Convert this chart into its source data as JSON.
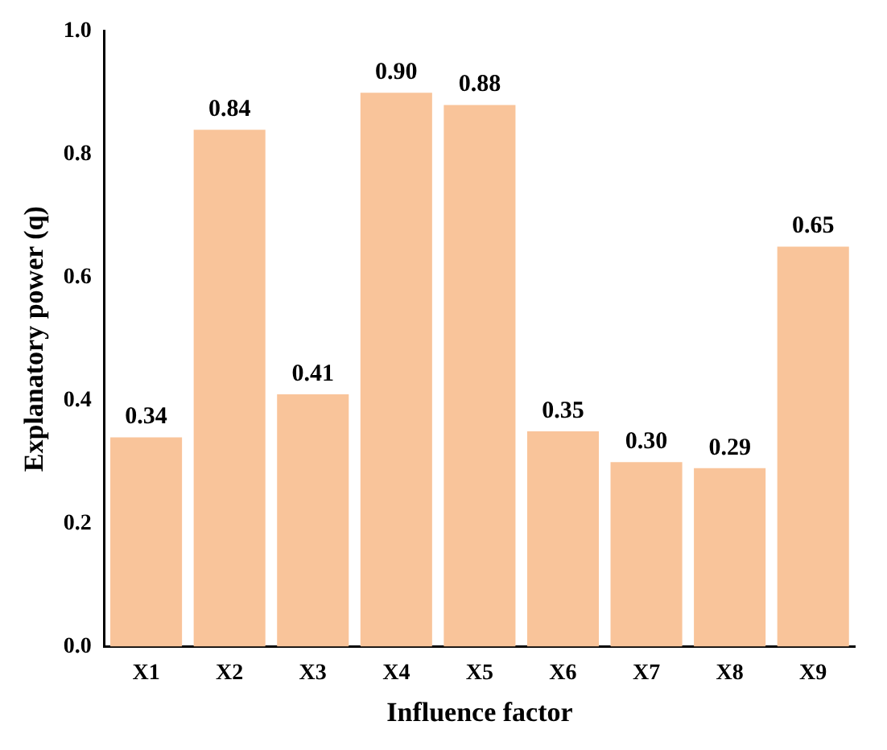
{
  "chart_data": {
    "type": "bar",
    "xlabel": "Influence factor",
    "ylabel": "Explanatory power (q)",
    "categories": [
      "X1",
      "X2",
      "X3",
      "X4",
      "X5",
      "X6",
      "X7",
      "X8",
      "X9"
    ],
    "values": [
      0.34,
      0.84,
      0.41,
      0.9,
      0.88,
      0.35,
      0.3,
      0.29,
      0.65
    ],
    "value_labels": [
      "0.34",
      "0.84",
      "0.41",
      "0.90",
      "0.88",
      "0.35",
      "0.30",
      "0.29",
      "0.65"
    ],
    "color": "#f9c49a",
    "ylim": [
      0,
      1
    ],
    "yticks": [
      {
        "value": 0,
        "label": "0.0"
      },
      0.2,
      0.4,
      0.6,
      0.8,
      {
        "value": 1,
        "label": "1.0"
      }
    ],
    "grid": false
  }
}
